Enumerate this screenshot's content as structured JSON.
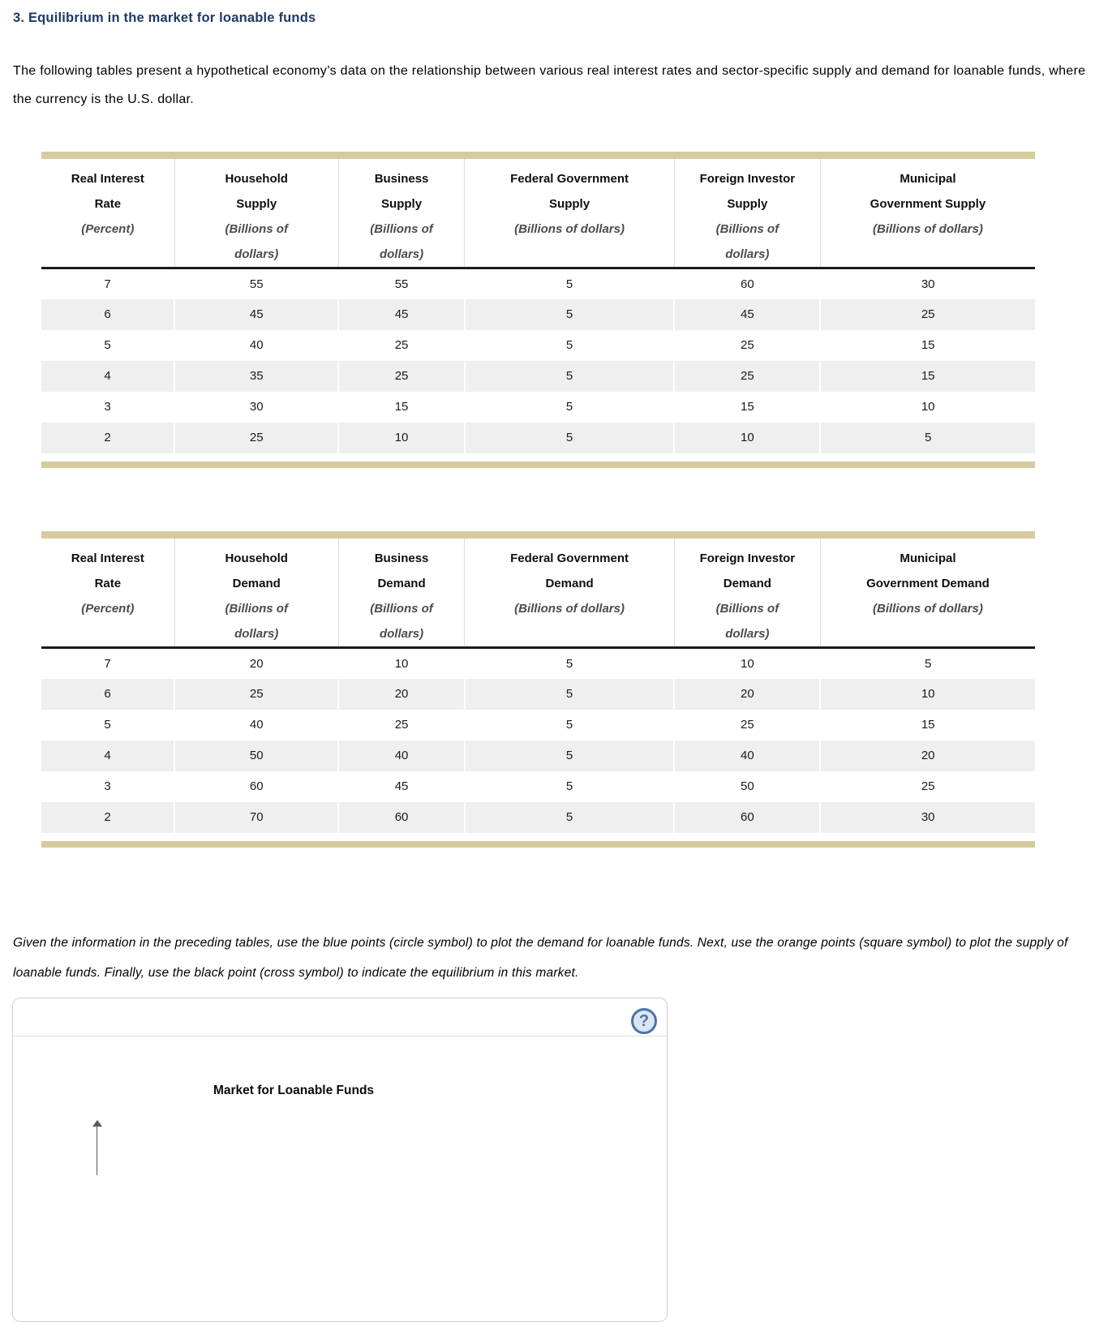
{
  "page": {
    "title": "3. Equilibrium in the market for loanable funds",
    "intro": "The following tables present a hypothetical economy’s data on the relationship between various real interest rates and sector-specific supply and demand for loanable funds, where the currency is the U.S. dollar.",
    "instruction": "Given the information in the preceding tables, use the blue points (circle symbol) to plot the demand for loanable funds. Next, use the orange points (square symbol) to plot the supply of loanable funds. Finally, use the black point (cross symbol) to indicate the equilibrium in this market."
  },
  "supply_table": {
    "columns": [
      {
        "title_lines": [
          "Real Interest",
          "Rate"
        ],
        "sub_lines": [
          "(Percent)"
        ]
      },
      {
        "title_lines": [
          "Household",
          "Supply"
        ],
        "sub_lines": [
          "(Billions of",
          "dollars)"
        ]
      },
      {
        "title_lines": [
          "Business",
          "Supply"
        ],
        "sub_lines": [
          "(Billions of",
          "dollars)"
        ]
      },
      {
        "title_lines": [
          "Federal Government",
          "Supply"
        ],
        "sub_lines": [
          "(Billions of dollars)"
        ]
      },
      {
        "title_lines": [
          "Foreign Investor",
          "Supply"
        ],
        "sub_lines": [
          "(Billions of",
          "dollars)"
        ]
      },
      {
        "title_lines": [
          "Municipal",
          "Government Supply"
        ],
        "sub_lines": [
          "(Billions of dollars)"
        ]
      }
    ],
    "rows": [
      [
        7,
        55,
        55,
        5,
        60,
        30
      ],
      [
        6,
        45,
        45,
        5,
        45,
        25
      ],
      [
        5,
        40,
        25,
        5,
        25,
        15
      ],
      [
        4,
        35,
        25,
        5,
        25,
        15
      ],
      [
        3,
        30,
        15,
        5,
        15,
        10
      ],
      [
        2,
        25,
        10,
        5,
        10,
        5
      ]
    ]
  },
  "demand_table": {
    "columns": [
      {
        "title_lines": [
          "Real Interest",
          "Rate"
        ],
        "sub_lines": [
          "(Percent)"
        ]
      },
      {
        "title_lines": [
          "Household",
          "Demand"
        ],
        "sub_lines": [
          "(Billions of",
          "dollars)"
        ]
      },
      {
        "title_lines": [
          "Business",
          "Demand"
        ],
        "sub_lines": [
          "(Billions of",
          "dollars)"
        ]
      },
      {
        "title_lines": [
          "Federal Government",
          "Demand"
        ],
        "sub_lines": [
          "(Billions of dollars)"
        ]
      },
      {
        "title_lines": [
          "Foreign Investor",
          "Demand"
        ],
        "sub_lines": [
          "(Billions of",
          "dollars)"
        ]
      },
      {
        "title_lines": [
          "Municipal",
          "Government Demand"
        ],
        "sub_lines": [
          "(Billions of dollars)"
        ]
      }
    ],
    "rows": [
      [
        7,
        20,
        10,
        5,
        10,
        5
      ],
      [
        6,
        25,
        20,
        5,
        20,
        10
      ],
      [
        5,
        40,
        25,
        5,
        25,
        15
      ],
      [
        4,
        50,
        40,
        5,
        40,
        20
      ],
      [
        3,
        60,
        45,
        5,
        50,
        25
      ],
      [
        2,
        70,
        60,
        5,
        60,
        30
      ]
    ]
  },
  "graph_panel": {
    "help_icon_glyph": "?",
    "chart_title": "Market for Loanable Funds"
  },
  "colors": {
    "title-navy": "#1e3a64",
    "accent-tan": "#d6cb9e",
    "row-alt": "#efefef",
    "help-blue": "#4b74a9",
    "help-bg": "#dce6f2",
    "panel-border": "#cfcfcf"
  }
}
